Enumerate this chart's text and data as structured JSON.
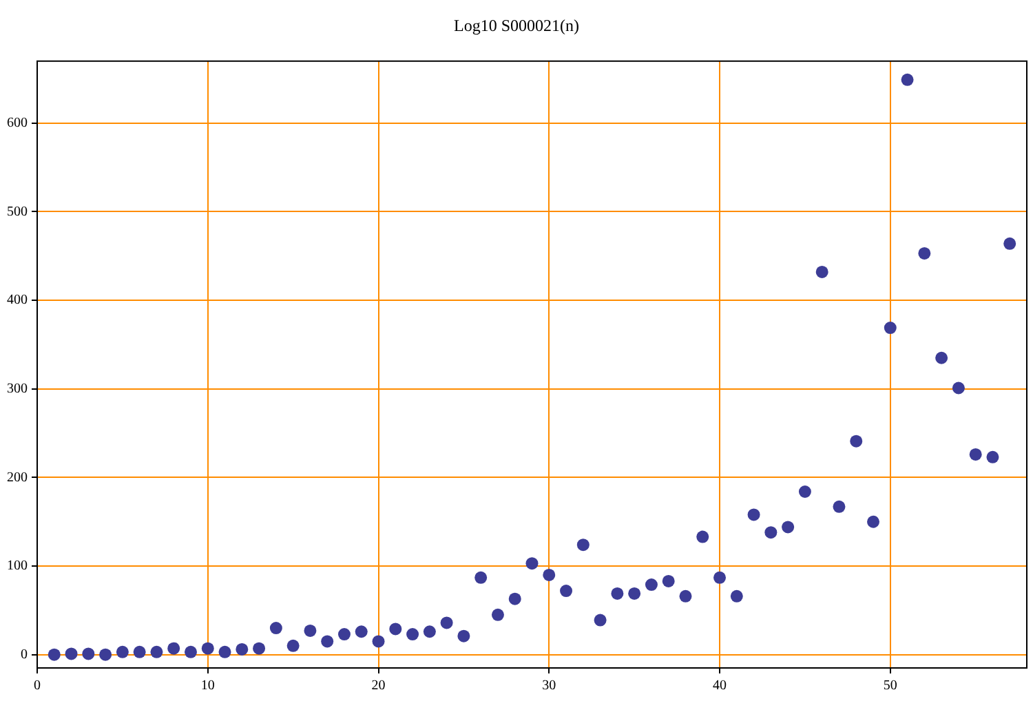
{
  "chart_data": {
    "type": "scatter",
    "title": "Log10 S000021(n)",
    "x": [
      1,
      2,
      3,
      4,
      5,
      6,
      7,
      8,
      9,
      10,
      11,
      12,
      13,
      14,
      15,
      16,
      17,
      18,
      19,
      20,
      21,
      22,
      23,
      24,
      25,
      26,
      27,
      28,
      29,
      30,
      31,
      32,
      33,
      34,
      35,
      36,
      37,
      38,
      39,
      40,
      41,
      42,
      43,
      44,
      45,
      46,
      47,
      48,
      49,
      50,
      51,
      52,
      53,
      54,
      55,
      56,
      57
    ],
    "series": [
      {
        "color": "#3c3c96",
        "values": [
          0,
          1,
          1,
          0,
          3,
          3,
          3,
          7,
          3,
          7,
          3,
          6,
          7,
          30,
          10,
          27,
          15,
          23,
          26,
          15,
          29,
          23,
          26,
          36,
          21,
          87,
          45,
          63,
          103,
          90,
          72,
          124,
          39,
          69,
          69,
          79,
          83,
          66,
          133,
          87,
          66,
          158,
          138,
          144,
          184,
          432,
          167,
          241,
          150,
          369,
          649,
          453,
          335,
          301,
          226,
          223,
          464
        ]
      }
    ],
    "xlim": [
      0,
      58
    ],
    "ylim": [
      -15,
      670
    ],
    "xticks": [
      0,
      10,
      20,
      30,
      40,
      50
    ],
    "yticks": [
      0,
      100,
      200,
      300,
      400,
      500,
      600
    ],
    "grid": true,
    "marker": "circle",
    "legend": false
  }
}
